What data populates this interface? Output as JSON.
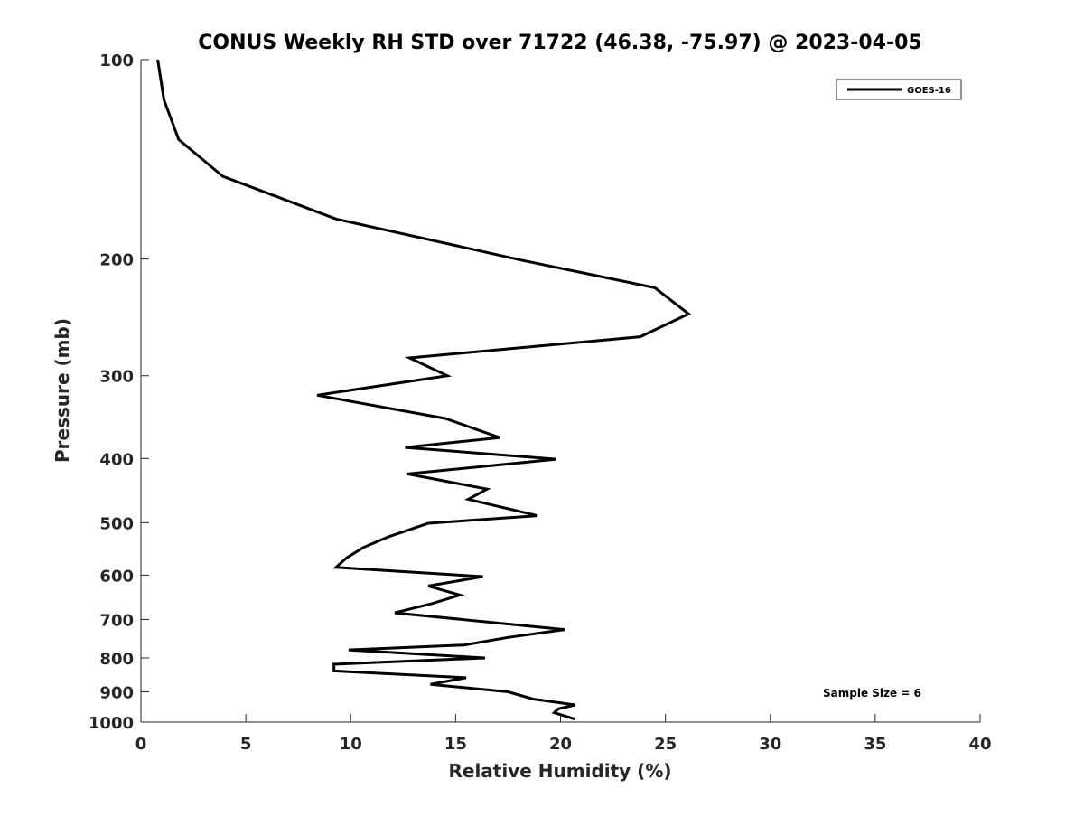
{
  "chart_data": {
    "type": "line",
    "title": "CONUS Weekly RH STD over 71722 (46.38, -75.97) @ 2023-04-05",
    "xlabel": "Relative Humidity (%)",
    "ylabel": "Pressure (mb)",
    "xlim": [
      0,
      40
    ],
    "ylim": [
      100,
      1000
    ],
    "yscale": "log",
    "y_reversed": true,
    "grid": false,
    "legend_position": "top-right",
    "x_ticks": [
      0,
      5,
      10,
      15,
      20,
      25,
      30,
      35,
      40
    ],
    "x_tick_labels": [
      "0",
      "5",
      "10",
      "15",
      "20",
      "25",
      "30",
      "35",
      "40"
    ],
    "y_ticks": [
      100,
      200,
      300,
      400,
      500,
      600,
      700,
      800,
      900,
      1000
    ],
    "y_tick_labels": [
      "100",
      "200",
      "300",
      "400",
      "500",
      "600",
      "700",
      "800",
      "900",
      "1000"
    ],
    "series": [
      {
        "name": "GOES-16",
        "color": "#000000",
        "points": [
          [
            0.8,
            100
          ],
          [
            1.1,
            115
          ],
          [
            1.8,
            132
          ],
          [
            3.9,
            150
          ],
          [
            9.3,
            174
          ],
          [
            18.2,
            201
          ],
          [
            24.5,
            221
          ],
          [
            26.1,
            242
          ],
          [
            23.8,
            262
          ],
          [
            12.8,
            282
          ],
          [
            14.6,
            300
          ],
          [
            8.4,
            321
          ],
          [
            14.5,
            348
          ],
          [
            17.1,
            372
          ],
          [
            12.6,
            385
          ],
          [
            19.8,
            401
          ],
          [
            12.7,
            422
          ],
          [
            16.5,
            445
          ],
          [
            15.6,
            461
          ],
          [
            18.9,
            488
          ],
          [
            13.7,
            501
          ],
          [
            11.8,
            525
          ],
          [
            10.6,
            545
          ],
          [
            9.8,
            565
          ],
          [
            9.3,
            584
          ],
          [
            16.3,
            603
          ],
          [
            13.7,
            623
          ],
          [
            15.2,
            643
          ],
          [
            13.9,
            662
          ],
          [
            12.1,
            684
          ],
          [
            20.2,
            725
          ],
          [
            17.5,
            745
          ],
          [
            15.4,
            765
          ],
          [
            9.9,
            778
          ],
          [
            16.4,
            800
          ],
          [
            9.2,
            818
          ],
          [
            9.2,
            837
          ],
          [
            15.5,
            857
          ],
          [
            13.8,
            877
          ],
          [
            17.5,
            900
          ],
          [
            18.7,
            923
          ],
          [
            20.7,
            942
          ],
          [
            19.9,
            955
          ],
          [
            19.7,
            968
          ],
          [
            20.7,
            990
          ]
        ]
      }
    ],
    "legend": [
      {
        "label": "GOES-16",
        "color": "#000000"
      }
    ],
    "annotations": [
      {
        "text": "Sample Size = 6"
      }
    ]
  }
}
